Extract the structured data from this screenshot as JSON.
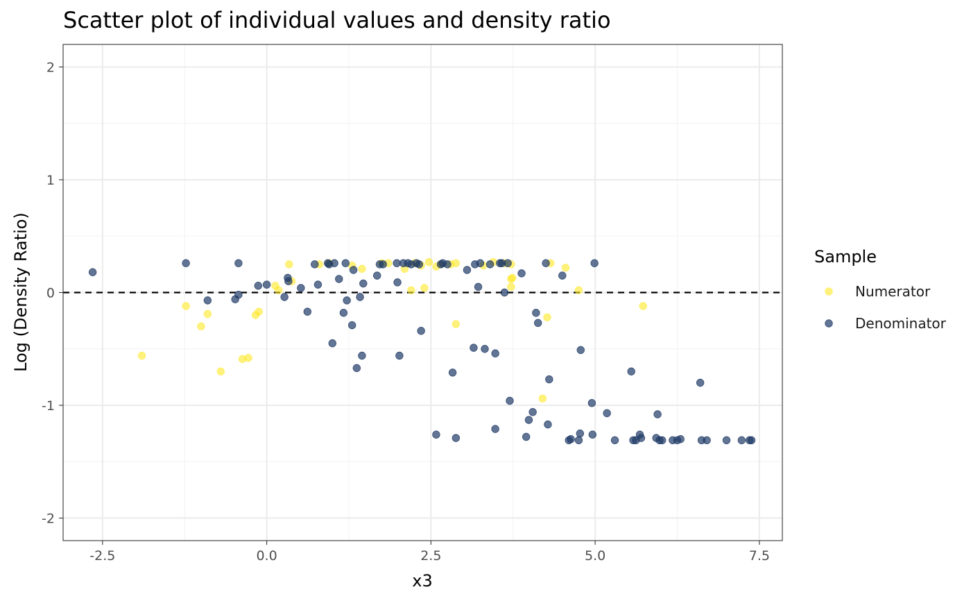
{
  "chart_data": {
    "type": "scatter",
    "title": "Scatter plot of individual values and density ratio",
    "xlabel": "x3",
    "ylabel": "Log (Density Ratio)",
    "xlim": [
      -3.1,
      7.85
    ],
    "ylim": [
      -2.2,
      2.2
    ],
    "x_ticks": [
      -2.5,
      0.0,
      2.5,
      5.0,
      7.5
    ],
    "x_tick_labels": [
      "-2.5",
      "0.0",
      "2.5",
      "5.0",
      "7.5"
    ],
    "y_ticks": [
      -2,
      -1,
      0,
      1,
      2
    ],
    "y_tick_labels": [
      "-2",
      "-1",
      "0",
      "1",
      "2"
    ],
    "grid": true,
    "reference_line": {
      "y": 0,
      "style": "dashed",
      "color": "#000000"
    },
    "legend": {
      "title": "Sample",
      "position": "right"
    },
    "series": [
      {
        "name": "Numerator",
        "color": "#FDE725",
        "points": [
          [
            -1.9,
            -0.56
          ],
          [
            -1.23,
            -0.12
          ],
          [
            -1.0,
            -0.3
          ],
          [
            -0.9,
            -0.19
          ],
          [
            -0.7,
            -0.7
          ],
          [
            -0.37,
            -0.59
          ],
          [
            -0.28,
            -0.58
          ],
          [
            -0.17,
            -0.2
          ],
          [
            -0.12,
            -0.17
          ],
          [
            0.13,
            0.06
          ],
          [
            0.18,
            0.02
          ],
          [
            0.34,
            0.25
          ],
          [
            0.38,
            0.1
          ],
          [
            0.8,
            0.25
          ],
          [
            0.95,
            0.26
          ],
          [
            1.3,
            0.24
          ],
          [
            1.45,
            0.21
          ],
          [
            1.75,
            0.26
          ],
          [
            1.85,
            0.26
          ],
          [
            2.1,
            0.21
          ],
          [
            2.2,
            0.02
          ],
          [
            2.25,
            0.26
          ],
          [
            2.35,
            0.24
          ],
          [
            2.4,
            0.04
          ],
          [
            2.47,
            0.27
          ],
          [
            2.58,
            0.23
          ],
          [
            2.65,
            0.25
          ],
          [
            2.8,
            0.25
          ],
          [
            2.88,
            0.26
          ],
          [
            2.88,
            -0.28
          ],
          [
            3.3,
            0.24
          ],
          [
            3.45,
            0.27
          ],
          [
            3.62,
            0.26
          ],
          [
            3.72,
            0.25
          ],
          [
            3.72,
            0.12
          ],
          [
            3.74,
            0.13
          ],
          [
            3.72,
            0.05
          ],
          [
            4.2,
            -0.94
          ],
          [
            4.27,
            -0.22
          ],
          [
            4.32,
            0.26
          ],
          [
            4.55,
            0.22
          ],
          [
            4.75,
            0.02
          ],
          [
            5.73,
            -0.12
          ]
        ]
      },
      {
        "name": "Denominator",
        "color": "#1F3A66",
        "points": [
          [
            -2.65,
            0.18
          ],
          [
            -1.23,
            0.26
          ],
          [
            -0.9,
            -0.07
          ],
          [
            -0.48,
            -0.06
          ],
          [
            -0.43,
            -0.02
          ],
          [
            -0.43,
            0.26
          ],
          [
            -0.13,
            0.06
          ],
          [
            0.0,
            0.07
          ],
          [
            0.27,
            -0.04
          ],
          [
            0.32,
            0.13
          ],
          [
            0.33,
            0.1
          ],
          [
            0.52,
            0.04
          ],
          [
            0.62,
            -0.17
          ],
          [
            0.73,
            0.25
          ],
          [
            0.78,
            0.07
          ],
          [
            0.93,
            0.26
          ],
          [
            0.95,
            0.25
          ],
          [
            1.0,
            -0.45
          ],
          [
            1.03,
            0.26
          ],
          [
            1.1,
            0.12
          ],
          [
            1.17,
            -0.18
          ],
          [
            1.2,
            0.26
          ],
          [
            1.22,
            -0.07
          ],
          [
            1.3,
            -0.29
          ],
          [
            1.32,
            0.2
          ],
          [
            1.37,
            -0.67
          ],
          [
            1.42,
            -0.04
          ],
          [
            1.45,
            -0.56
          ],
          [
            1.47,
            0.08
          ],
          [
            1.68,
            0.15
          ],
          [
            1.72,
            0.25
          ],
          [
            1.77,
            0.25
          ],
          [
            1.98,
            0.26
          ],
          [
            1.99,
            0.09
          ],
          [
            2.02,
            -0.56
          ],
          [
            2.08,
            0.26
          ],
          [
            2.15,
            0.26
          ],
          [
            2.2,
            0.25
          ],
          [
            2.28,
            0.26
          ],
          [
            2.32,
            0.25
          ],
          [
            2.35,
            -0.34
          ],
          [
            2.58,
            -1.26
          ],
          [
            2.65,
            0.25
          ],
          [
            2.68,
            0.26
          ],
          [
            2.75,
            0.25
          ],
          [
            2.83,
            -0.71
          ],
          [
            2.88,
            -1.29
          ],
          [
            3.05,
            0.2
          ],
          [
            3.15,
            -0.49
          ],
          [
            3.17,
            0.25
          ],
          [
            3.22,
            0.05
          ],
          [
            3.25,
            0.26
          ],
          [
            3.32,
            -0.5
          ],
          [
            3.4,
            0.25
          ],
          [
            3.48,
            -0.54
          ],
          [
            3.48,
            -1.21
          ],
          [
            3.55,
            0.26
          ],
          [
            3.58,
            0.26
          ],
          [
            3.62,
            0.0
          ],
          [
            3.67,
            0.26
          ],
          [
            3.7,
            -0.96
          ],
          [
            3.88,
            0.17
          ],
          [
            3.95,
            -1.28
          ],
          [
            3.99,
            -1.13
          ],
          [
            4.05,
            -1.06
          ],
          [
            4.1,
            -0.18
          ],
          [
            4.13,
            -0.27
          ],
          [
            4.25,
            0.26
          ],
          [
            4.28,
            -1.17
          ],
          [
            4.3,
            -0.77
          ],
          [
            4.5,
            0.15
          ],
          [
            4.6,
            -1.31
          ],
          [
            4.63,
            -1.3
          ],
          [
            4.75,
            -1.31
          ],
          [
            4.77,
            -1.25
          ],
          [
            4.78,
            -0.51
          ],
          [
            4.95,
            -0.98
          ],
          [
            4.96,
            -1.26
          ],
          [
            4.99,
            0.26
          ],
          [
            5.18,
            -1.07
          ],
          [
            5.3,
            -1.31
          ],
          [
            5.55,
            -0.7
          ],
          [
            5.58,
            -1.31
          ],
          [
            5.62,
            -1.31
          ],
          [
            5.68,
            -1.26
          ],
          [
            5.7,
            -1.29
          ],
          [
            5.93,
            -1.29
          ],
          [
            5.95,
            -1.08
          ],
          [
            5.98,
            -1.31
          ],
          [
            6.02,
            -1.31
          ],
          [
            6.18,
            -1.31
          ],
          [
            6.25,
            -1.31
          ],
          [
            6.3,
            -1.3
          ],
          [
            6.6,
            -0.8
          ],
          [
            6.62,
            -1.31
          ],
          [
            6.7,
            -1.31
          ],
          [
            7.0,
            -1.31
          ],
          [
            7.23,
            -1.31
          ],
          [
            7.35,
            -1.31
          ],
          [
            7.38,
            -1.31
          ]
        ]
      }
    ]
  }
}
